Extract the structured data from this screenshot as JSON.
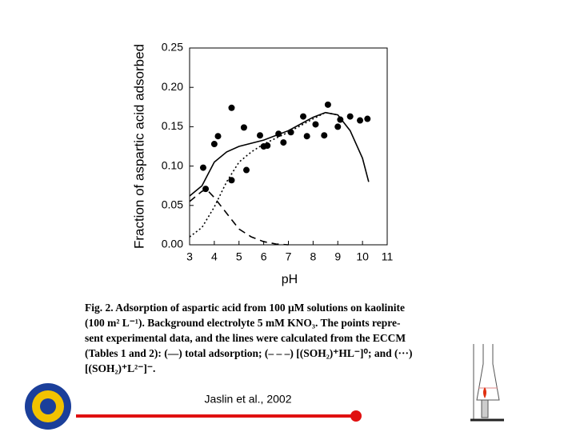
{
  "chart_data": {
    "type": "scatter-line",
    "ylabel": "Fraction of aspartic acid adsorbed",
    "xlabel": "pH",
    "xlim": [
      3,
      11
    ],
    "xticks": [
      3,
      4,
      5,
      6,
      7,
      8,
      9,
      10,
      11
    ],
    "ylim": [
      0,
      0.25
    ],
    "yticks": [
      {
        "value": 0,
        "label": "0.00"
      },
      0.05,
      {
        "value": 0.1,
        "label": "0.10"
      },
      0.15,
      {
        "value": 0.2,
        "label": "0.20"
      },
      0.25
    ],
    "series": [
      {
        "style": "markers",
        "color": "#000000",
        "x": [
          3.55,
          4.0,
          4.15,
          4.7,
          5.2,
          5.85,
          6.0,
          6.15,
          6.6,
          6.8,
          7.1,
          7.6,
          7.75,
          8.1,
          8.45,
          8.6,
          9.0,
          9.1,
          9.5,
          9.9,
          10.2,
          3.65,
          4.7,
          5.3
        ],
        "values": [
          0.098,
          0.128,
          0.138,
          0.174,
          0.149,
          0.139,
          0.125,
          0.126,
          0.141,
          0.13,
          0.143,
          0.163,
          0.138,
          0.153,
          0.139,
          0.178,
          0.15,
          0.159,
          0.163,
          0.158,
          0.16,
          0.071,
          0.082,
          0.095
        ]
      },
      {
        "style": "solid",
        "color": "#000000",
        "x": [
          3.0,
          3.5,
          4.0,
          4.5,
          5.0,
          6.0,
          7.0,
          8.0,
          8.5,
          9.0,
          9.5,
          10.0,
          10.25
        ],
        "values": [
          0.062,
          0.075,
          0.105,
          0.118,
          0.125,
          0.133,
          0.145,
          0.162,
          0.168,
          0.165,
          0.145,
          0.11,
          0.08
        ]
      },
      {
        "style": "dashed",
        "color": "#000000",
        "x": [
          3.0,
          3.5,
          3.7,
          4.0,
          4.5,
          5.0,
          5.5,
          6.0,
          6.5,
          7.0
        ],
        "values": [
          0.055,
          0.068,
          0.07,
          0.06,
          0.04,
          0.02,
          0.01,
          0.004,
          0.001,
          0
        ]
      },
      {
        "style": "dotted",
        "color": "#000000",
        "x": [
          3.0,
          3.5,
          4.0,
          4.5,
          5.0,
          5.5,
          6.0,
          7.0,
          8.0,
          8.5,
          9.0
        ],
        "values": [
          0.01,
          0.022,
          0.048,
          0.08,
          0.105,
          0.118,
          0.128,
          0.143,
          0.16,
          0.168,
          0.165
        ]
      }
    ],
    "caption": [
      "Fig. 2. Adsorption of aspartic acid from 100 μM solutions on kaolinite",
      "(100 m² L⁻¹). Background electrolyte 5 mM KNO₃. The points repre-",
      "sent experimental data, and the lines were calculated from the ECCM",
      "(Tables 1 and 2): (—) total adsorption; (– – –) [(SOH₂)⁺HL⁻]⁰; and (···)",
      "[(SOH₂)⁺L²⁻]⁻."
    ],
    "citation": "Jaslin et al., 2002"
  }
}
